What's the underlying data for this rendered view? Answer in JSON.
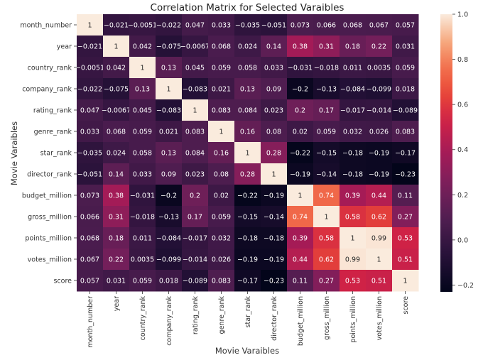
{
  "chart_data": {
    "type": "heatmap",
    "title": "Correlation Matrix for Selected Varaibles",
    "xlabel": "Movie Varaibles",
    "ylabel": "Movie Varaibles",
    "variables": [
      "month_number",
      "year",
      "country_rank",
      "company_rank",
      "rating_rank",
      "genre_rank",
      "star_rank",
      "director_rank",
      "budget_million",
      "gross_million",
      "points_million",
      "votes_million",
      "score"
    ],
    "matrix": [
      [
        1,
        -0.021,
        -0.0051,
        -0.022,
        0.047,
        0.033,
        -0.035,
        -0.051,
        0.073,
        0.066,
        0.068,
        0.067,
        0.057
      ],
      [
        -0.021,
        1,
        0.042,
        -0.075,
        -0.0067,
        0.068,
        0.024,
        0.14,
        0.38,
        0.31,
        0.18,
        0.22,
        0.031
      ],
      [
        -0.0051,
        0.042,
        1,
        0.13,
        0.045,
        0.059,
        0.058,
        0.033,
        -0.031,
        -0.018,
        0.011,
        0.0035,
        0.059
      ],
      [
        -0.022,
        -0.075,
        0.13,
        1,
        -0.083,
        0.021,
        0.13,
        0.09,
        -0.2,
        -0.13,
        -0.084,
        -0.099,
        0.018
      ],
      [
        0.047,
        -0.0067,
        0.045,
        -0.083,
        1,
        0.083,
        0.084,
        0.023,
        0.2,
        0.17,
        -0.017,
        -0.014,
        -0.089
      ],
      [
        0.033,
        0.068,
        0.059,
        0.021,
        0.083,
        1,
        0.16,
        0.08,
        0.02,
        0.059,
        0.032,
        0.026,
        0.083
      ],
      [
        -0.035,
        0.024,
        0.058,
        0.13,
        0.084,
        0.16,
        1,
        0.28,
        -0.22,
        -0.15,
        -0.18,
        -0.19,
        -0.17
      ],
      [
        -0.051,
        0.14,
        0.033,
        0.09,
        0.023,
        0.08,
        0.28,
        1,
        -0.19,
        -0.14,
        -0.18,
        -0.19,
        -0.23
      ],
      [
        0.073,
        0.38,
        -0.031,
        -0.2,
        0.2,
        0.02,
        -0.22,
        -0.19,
        1,
        0.74,
        0.39,
        0.44,
        0.11
      ],
      [
        0.066,
        0.31,
        -0.018,
        -0.13,
        0.17,
        0.059,
        -0.15,
        -0.14,
        0.74,
        1,
        0.58,
        0.62,
        0.27
      ],
      [
        0.068,
        0.18,
        0.011,
        -0.084,
        -0.017,
        0.032,
        -0.18,
        -0.18,
        0.39,
        0.58,
        1,
        0.99,
        0.53
      ],
      [
        0.067,
        0.22,
        0.0035,
        -0.099,
        -0.014,
        0.026,
        -0.19,
        -0.19,
        0.44,
        0.62,
        0.99,
        1,
        0.51
      ],
      [
        0.057,
        0.031,
        0.059,
        0.018,
        -0.089,
        0.083,
        -0.17,
        -0.23,
        0.11,
        0.27,
        0.53,
        0.51,
        1
      ]
    ],
    "colorbar": {
      "range": [
        -0.23,
        1.0
      ],
      "ticks": [
        -0.2,
        0.0,
        0.2,
        0.4,
        0.6,
        0.8,
        1.0
      ],
      "tick_labels": [
        "−0.2",
        "0.0",
        "0.2",
        "0.4",
        "0.6",
        "0.8",
        "1.0"
      ],
      "colormap": "rocket"
    },
    "grid": false
  }
}
